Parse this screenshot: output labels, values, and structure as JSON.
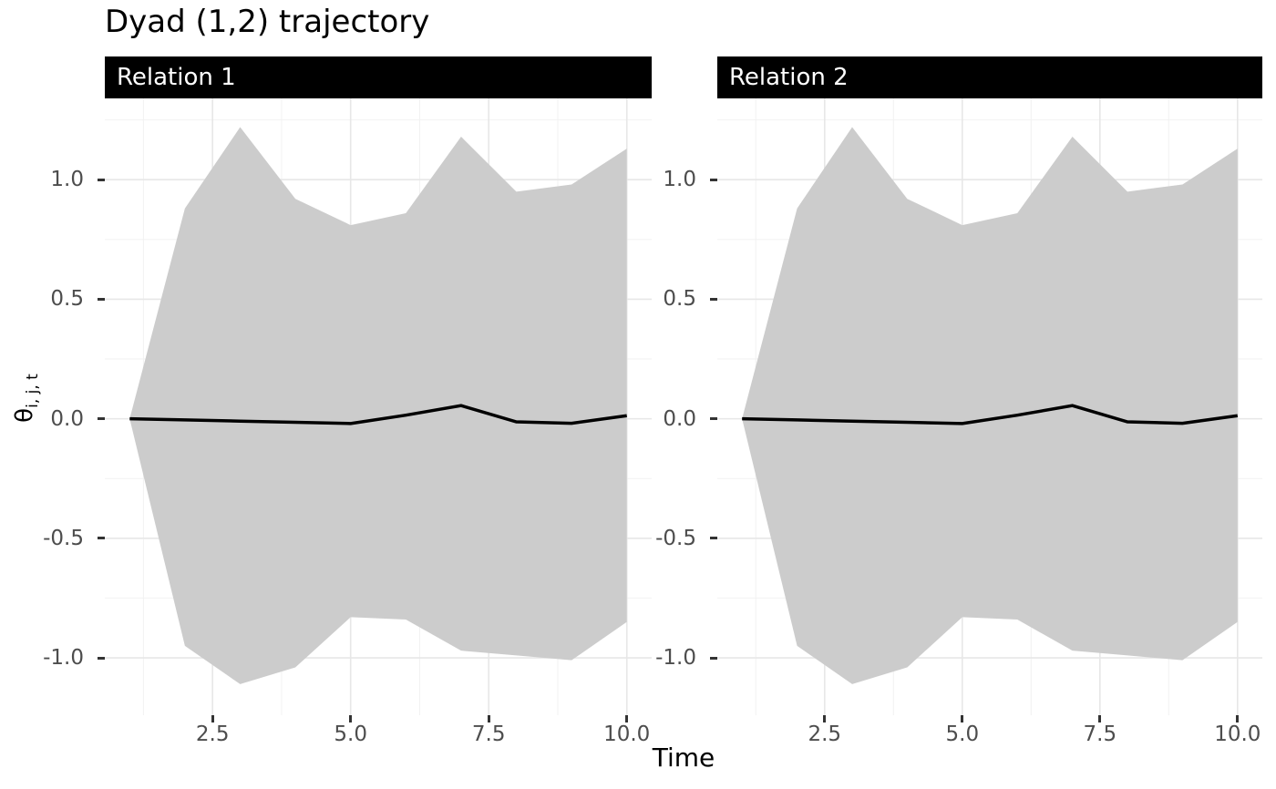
{
  "title": "Dyad (1,2) trajectory",
  "axes": {
    "x_label": "Time",
    "y_label_base": "θ",
    "y_label_sub": "i, j, t"
  },
  "colors": {
    "background": "#FFFFFF",
    "title_text": "#000000",
    "strip_bg": "#000000",
    "strip_text": "#FFFFFF",
    "ribbon": "#CCCCCC",
    "line": "#000000",
    "grid_major": "#E7E7E7",
    "grid_minor": "#F2F2F2",
    "axis_text": "#4D4D4D",
    "tick_mark": "#333333"
  },
  "chart_data": [
    {
      "type": "area",
      "facet_label": "Relation 1",
      "x": [
        1,
        2,
        3,
        4,
        5,
        6,
        7,
        8,
        9,
        10
      ],
      "series": [
        {
          "name": "posterior_mean",
          "values": [
            0,
            -0.005,
            -0.01,
            -0.015,
            -0.02,
            0.015,
            0.055,
            -0.013,
            -0.019,
            0.013
          ]
        },
        {
          "name": "ci_upper",
          "values": [
            0,
            0.88,
            1.22,
            0.92,
            0.81,
            0.86,
            1.18,
            0.95,
            0.98,
            1.13
          ]
        },
        {
          "name": "ci_lower",
          "values": [
            0,
            -0.95,
            -1.11,
            -1.04,
            -0.83,
            -0.84,
            -0.97,
            -0.99,
            -1.01,
            -0.85
          ]
        }
      ],
      "xlim": [
        0.55,
        10.45
      ],
      "ylim": [
        -1.24,
        1.34
      ],
      "x_ticks": {
        "values": [
          2.5,
          5,
          7.5,
          10
        ],
        "labels": [
          "2.5",
          "5.0",
          "7.5",
          "10.0"
        ],
        "minor": [
          1.25,
          3.75,
          6.25,
          8.75
        ]
      },
      "y_ticks": {
        "values": [
          -1,
          -0.5,
          0,
          0.5,
          1
        ],
        "labels": [
          "-1.0",
          "-0.5",
          "0.0",
          "0.5",
          "1.0"
        ],
        "minor": [
          -1.25,
          -0.75,
          -0.25,
          0.25,
          0.75,
          1.25
        ]
      },
      "grid": true,
      "legend": "none"
    },
    {
      "type": "area",
      "facet_label": "Relation 2",
      "x": [
        1,
        2,
        3,
        4,
        5,
        6,
        7,
        8,
        9,
        10
      ],
      "series": [
        {
          "name": "posterior_mean",
          "values": [
            0,
            -0.005,
            -0.01,
            -0.015,
            -0.02,
            0.015,
            0.055,
            -0.013,
            -0.019,
            0.013
          ]
        },
        {
          "name": "ci_upper",
          "values": [
            0,
            0.88,
            1.22,
            0.92,
            0.81,
            0.86,
            1.18,
            0.95,
            0.98,
            1.13
          ]
        },
        {
          "name": "ci_lower",
          "values": [
            0,
            -0.95,
            -1.11,
            -1.04,
            -0.83,
            -0.84,
            -0.97,
            -0.99,
            -1.01,
            -0.85
          ]
        }
      ],
      "xlim": [
        0.55,
        10.45
      ],
      "ylim": [
        -1.24,
        1.34
      ],
      "x_ticks": {
        "values": [
          2.5,
          5,
          7.5,
          10
        ],
        "labels": [
          "2.5",
          "5.0",
          "7.5",
          "10.0"
        ],
        "minor": [
          1.25,
          3.75,
          6.25,
          8.75
        ]
      },
      "y_ticks": {
        "values": [
          -1,
          -0.5,
          0,
          0.5,
          1
        ],
        "labels": [
          "-1.0",
          "-0.5",
          "0.0",
          "0.5",
          "1.0"
        ],
        "minor": [
          -1.25,
          -0.75,
          -0.25,
          0.25,
          0.75,
          1.25
        ]
      },
      "grid": true,
      "legend": "none"
    }
  ]
}
